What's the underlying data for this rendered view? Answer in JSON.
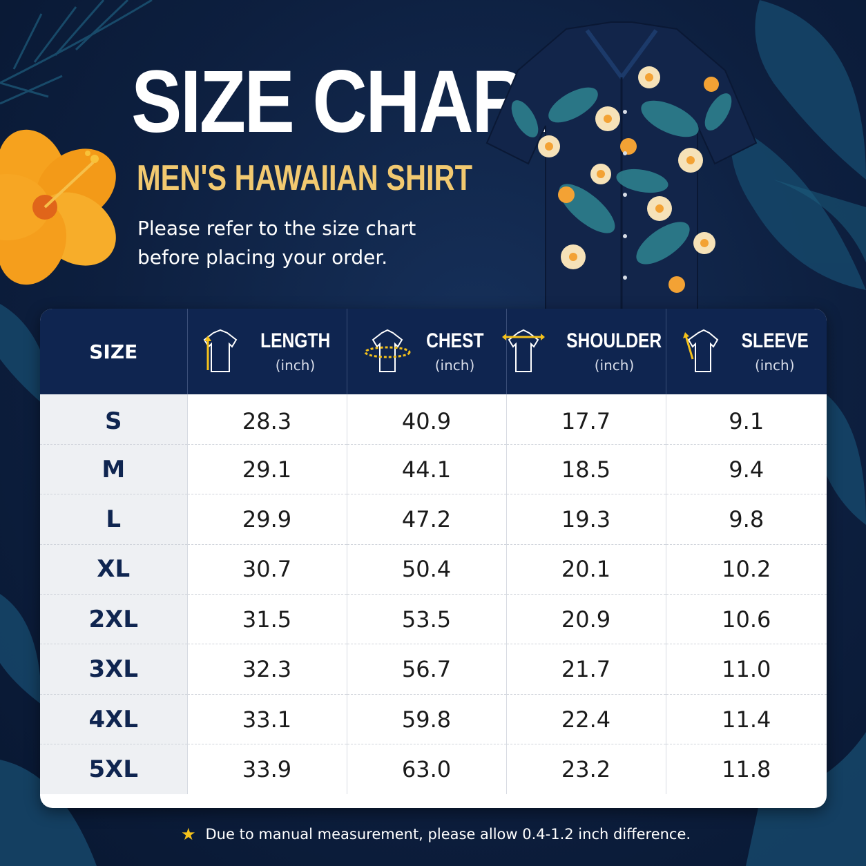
{
  "header": {
    "title": "SIZE CHART",
    "subtitle": "MEN'S HAWAIIAN SHIRT",
    "description": "Please refer to the size chart before placing your order."
  },
  "colors": {
    "background": "#0d1f3f",
    "table_header": "#0f2550",
    "accent_gold": "#f2c970",
    "hibiscus_orange": "#f5a01f"
  },
  "table": {
    "size_header": "SIZE",
    "columns": [
      {
        "name": "LENGTH",
        "unit": "(inch)",
        "icon": "length-measure-icon"
      },
      {
        "name": "CHEST",
        "unit": "(inch)",
        "icon": "chest-measure-icon"
      },
      {
        "name": "SHOULDER",
        "unit": "(inch)",
        "icon": "shoulder-measure-icon"
      },
      {
        "name": "SLEEVE",
        "unit": "(inch)",
        "icon": "sleeve-measure-icon"
      }
    ],
    "rows": [
      {
        "size": "S",
        "values": [
          "28.3",
          "40.9",
          "17.7",
          "9.1"
        ]
      },
      {
        "size": "M",
        "values": [
          "29.1",
          "44.1",
          "18.5",
          "9.4"
        ]
      },
      {
        "size": "L",
        "values": [
          "29.9",
          "47.2",
          "19.3",
          "9.8"
        ]
      },
      {
        "size": "XL",
        "values": [
          "30.7",
          "50.4",
          "20.1",
          "10.2"
        ]
      },
      {
        "size": "2XL",
        "values": [
          "31.5",
          "53.5",
          "20.9",
          "10.6"
        ]
      },
      {
        "size": "3XL",
        "values": [
          "32.3",
          "56.7",
          "21.7",
          "11.0"
        ]
      },
      {
        "size": "4XL",
        "values": [
          "33.1",
          "59.8",
          "22.4",
          "11.4"
        ]
      },
      {
        "size": "5XL",
        "values": [
          "33.9",
          "63.0",
          "23.2",
          "11.8"
        ]
      }
    ]
  },
  "footnote": {
    "icon": "star-icon",
    "text": "Due to manual measurement, please allow 0.4-1.2 inch difference."
  }
}
